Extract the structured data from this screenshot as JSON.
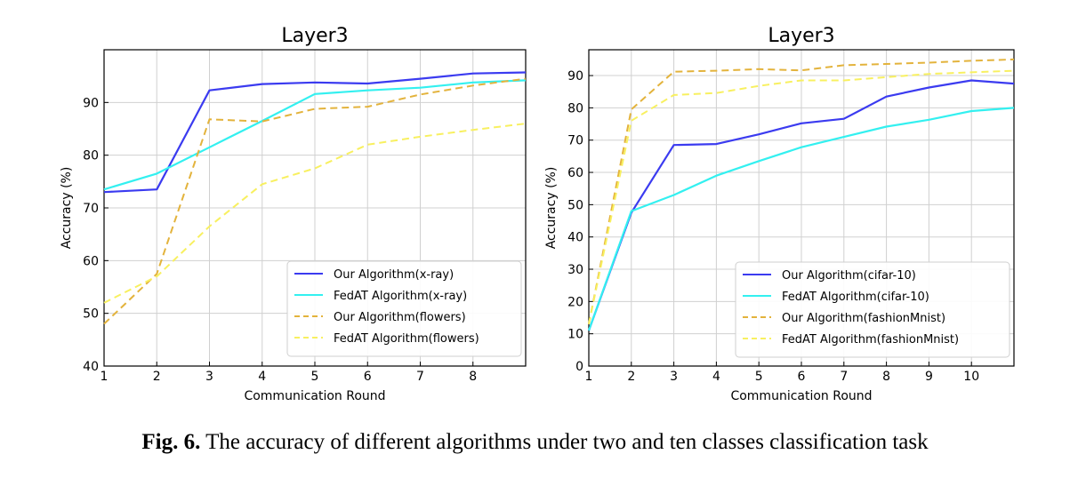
{
  "caption": {
    "label": "Fig. 6.",
    "text": " The accuracy of different algorithms under two and ten classes classification task"
  },
  "chart_data": [
    {
      "type": "line",
      "title": "Layer3",
      "xlabel": "Communication Round",
      "ylabel": "Accuracy (%)",
      "xlim": [
        1,
        9
      ],
      "ylim": [
        40,
        100
      ],
      "xticks": [
        1,
        2,
        3,
        4,
        5,
        6,
        7,
        8
      ],
      "yticks": [
        40,
        50,
        60,
        70,
        80,
        90
      ],
      "grid": true,
      "legend": "lower-right",
      "x": [
        1,
        2,
        3,
        4,
        5,
        6,
        7,
        8,
        9
      ],
      "series": [
        {
          "name": "Our Algorithm(x-ray)",
          "color": "#3b3bf0",
          "dashed": false,
          "values": [
            73,
            73.5,
            92.3,
            93.5,
            93.8,
            93.6,
            94.5,
            95.5,
            95.7
          ]
        },
        {
          "name": "FedAT Algorithm(x-ray)",
          "color": "#33f0f0",
          "dashed": false,
          "values": [
            73.5,
            76.5,
            81.5,
            86.5,
            91.6,
            92.3,
            92.8,
            93.8,
            94.2
          ]
        },
        {
          "name": "Our Algorithm(flowers)",
          "color": "#e3b33c",
          "dashed": true,
          "values": [
            48,
            57.5,
            86.8,
            86.4,
            88.8,
            89.2,
            91.5,
            93.2,
            94.5
          ]
        },
        {
          "name": "FedAT Algorithm(flowers)",
          "color": "#f8f060",
          "dashed": true,
          "values": [
            52,
            57,
            66.5,
            74.5,
            77.5,
            82,
            83.5,
            84.8,
            86
          ]
        }
      ]
    },
    {
      "type": "line",
      "title": "Layer3",
      "xlabel": "Communication Round",
      "ylabel": "Accuracy (%)",
      "xlim": [
        1,
        11
      ],
      "ylim": [
        0,
        98
      ],
      "xticks": [
        1,
        2,
        3,
        4,
        5,
        6,
        7,
        8,
        9,
        10
      ],
      "yticks": [
        0,
        10,
        20,
        30,
        40,
        50,
        60,
        70,
        80,
        90
      ],
      "grid": true,
      "legend": "lower-right",
      "x": [
        1,
        2,
        3,
        4,
        5,
        6,
        7,
        8,
        9,
        10,
        11
      ],
      "series": [
        {
          "name": "Our Algorithm(cifar-10)",
          "color": "#3b3bf0",
          "dashed": false,
          "values": [
            11,
            47.5,
            68.5,
            68.8,
            71.8,
            75.2,
            76.6,
            83.5,
            86.3,
            88.5,
            87.5
          ]
        },
        {
          "name": "FedAT Algorithm(cifar-10)",
          "color": "#33f0f0",
          "dashed": false,
          "values": [
            11,
            48,
            53,
            59,
            63.5,
            67.8,
            71,
            74.2,
            76.3,
            79,
            80
          ]
        },
        {
          "name": "Our Algorithm(fashionMnist)",
          "color": "#e3b33c",
          "dashed": true,
          "values": [
            13,
            79.5,
            91.2,
            91.5,
            92,
            91.6,
            93.2,
            93.6,
            94,
            94.6,
            95
          ]
        },
        {
          "name": "FedAT Algorithm(fashionMnist)",
          "color": "#f8f060",
          "dashed": true,
          "values": [
            13,
            76,
            84,
            84.6,
            86.8,
            88.5,
            88.5,
            89.5,
            90.5,
            91,
            91.5
          ]
        }
      ]
    }
  ]
}
